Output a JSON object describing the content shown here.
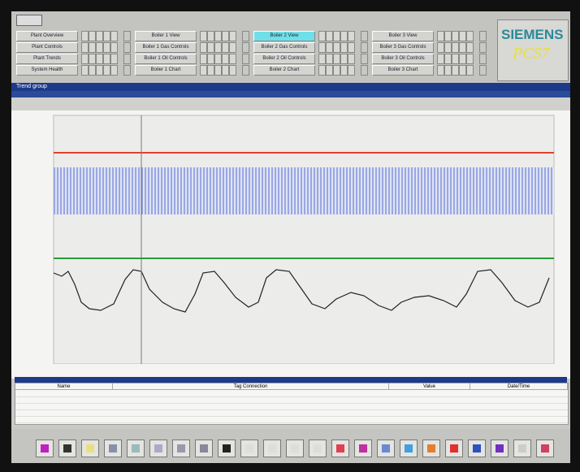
{
  "nav": {
    "columns": [
      [
        "Plant Overview",
        "Plant Controls",
        "Plant Trends",
        "System Health"
      ],
      [
        "Boiler 1 View",
        "Boiler 1 Gas Controls",
        "Boiler 1 Oil Controls",
        "Boiler 1 Chart"
      ],
      [
        "Boiler 2 View",
        "Boiler 2 Gas Controls",
        "Boiler 2 Oil Controls",
        "Boiler 2 Chart"
      ],
      [
        "Boiler 3 View",
        "Boiler 3 Gas Controls",
        "Boiler 3 Oil Controls",
        "Boiler 3 Chart"
      ]
    ]
  },
  "brand": {
    "name": "SIEMENS",
    "product": "PCS7"
  },
  "window": {
    "title": "Trend group"
  },
  "table": {
    "columns": [
      "Name",
      "Tag Connection",
      "Value",
      "Date/Time"
    ]
  }
}
